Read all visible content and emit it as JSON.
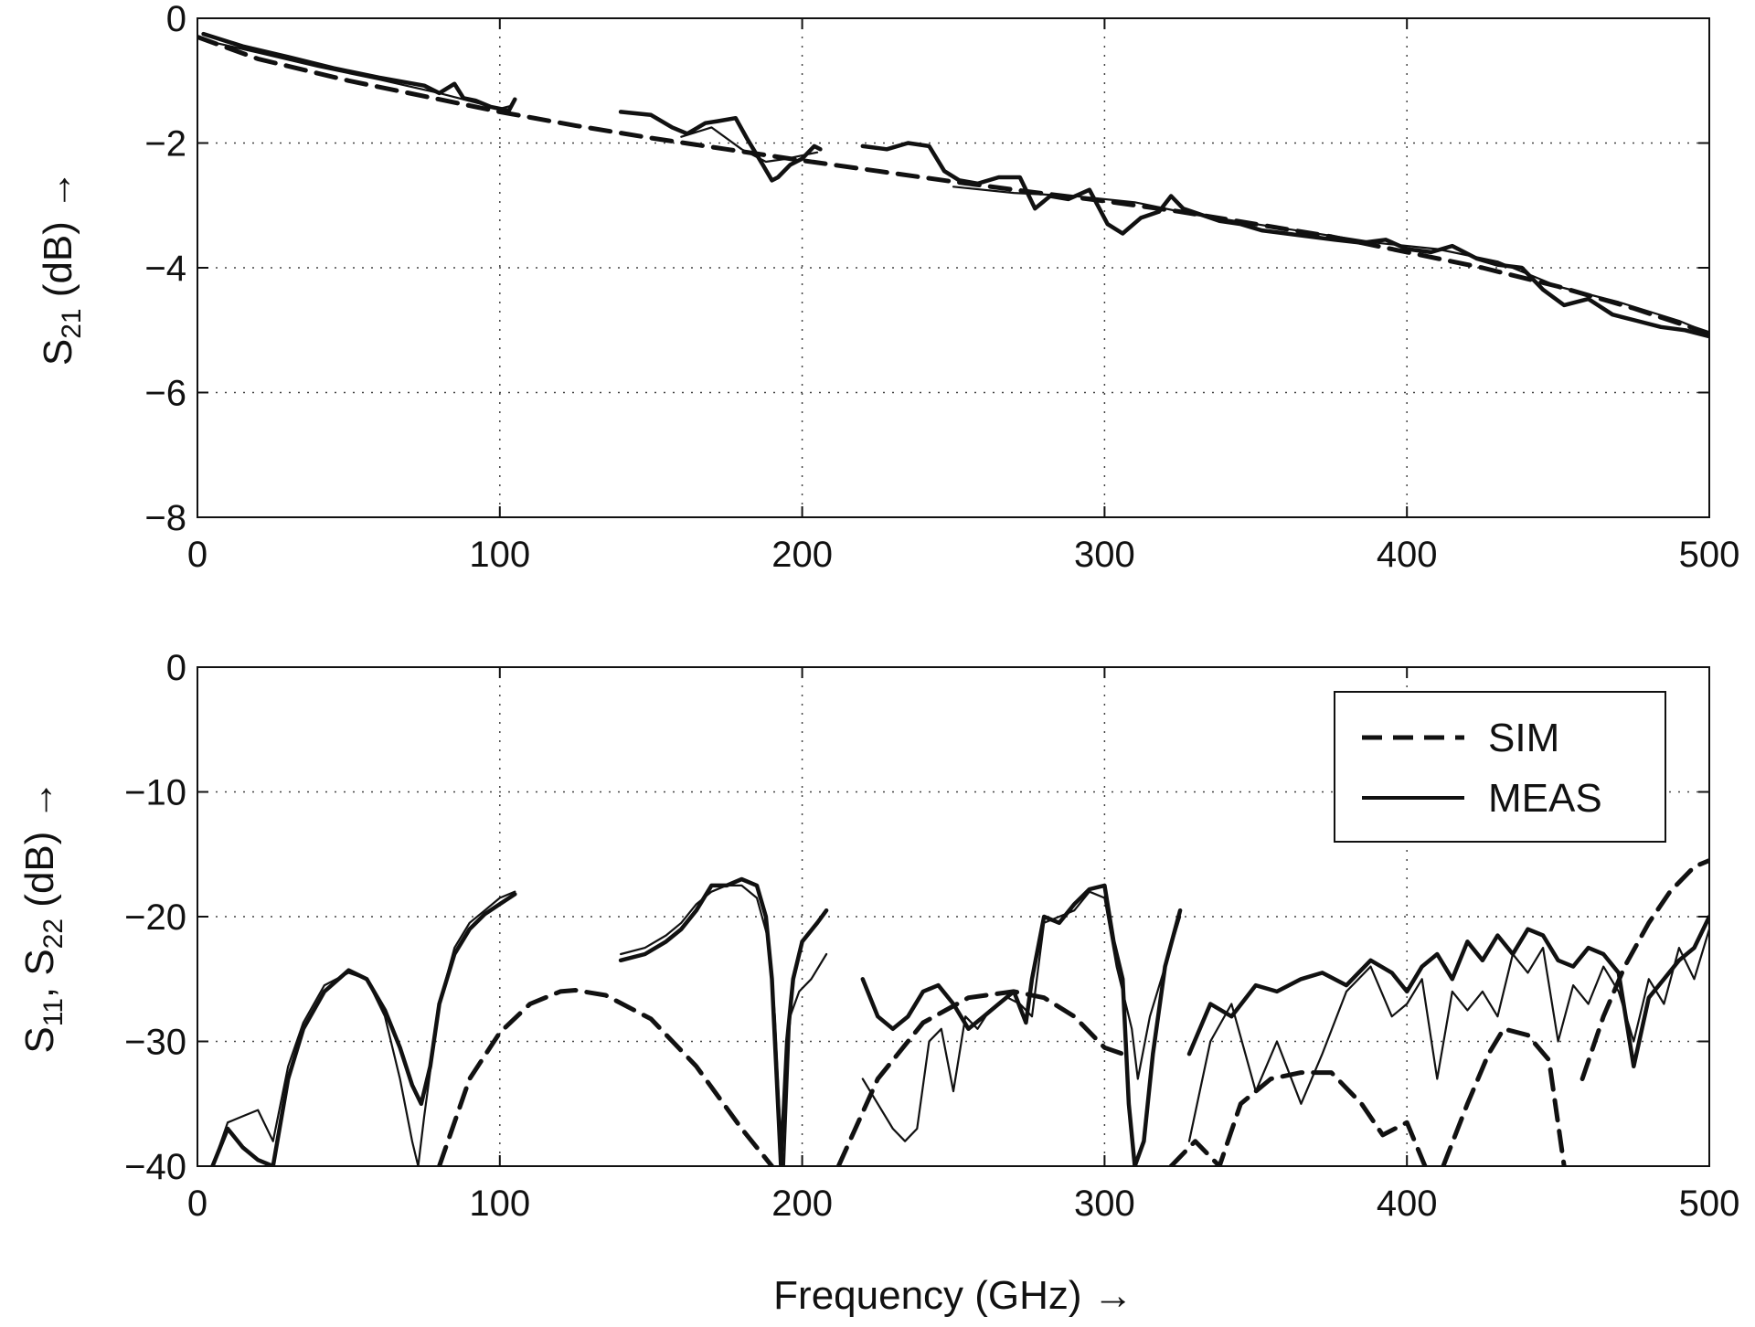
{
  "chart_data": [
    {
      "type": "line",
      "panel": "top",
      "title": "",
      "xlabel": "",
      "ylabel": {
        "main": "S",
        "sub": "21",
        "rest": " (dB) →"
      },
      "xlim": [
        0,
        500
      ],
      "ylim": [
        -8,
        0
      ],
      "xticks": [
        0,
        100,
        200,
        300,
        400,
        500
      ],
      "yticks": [
        0,
        -2,
        -4,
        -6,
        -8
      ],
      "ytick_labels": [
        "0",
        "−2",
        "−4",
        "−6",
        "−8"
      ],
      "grid": "dotted",
      "series": [
        {
          "style": "dashed",
          "x": [
            0,
            20,
            50,
            80,
            100,
            125,
            150,
            175,
            200,
            225,
            250,
            275,
            300,
            325,
            350,
            375,
            400,
            425,
            450,
            475,
            500
          ],
          "y": [
            -0.3,
            -0.65,
            -1.0,
            -1.3,
            -1.5,
            -1.72,
            -1.92,
            -2.1,
            -2.28,
            -2.45,
            -2.62,
            -2.78,
            -2.93,
            -3.1,
            -3.3,
            -3.5,
            -3.75,
            -4.0,
            -4.3,
            -4.65,
            -5.05
          ]
        },
        {
          "style": "solid-thick",
          "segments": [
            {
              "x": [
                2,
                15,
                30,
                45,
                60,
                75,
                80,
                85,
                88,
                92,
                97,
                103,
                105
              ],
              "y": [
                -0.25,
                -0.45,
                -0.62,
                -0.8,
                -0.95,
                -1.08,
                -1.2,
                -1.05,
                -1.28,
                -1.32,
                -1.42,
                -1.48,
                -1.3
              ]
            },
            {
              "x": [
                140,
                150,
                157,
                162,
                168,
                172,
                178,
                182,
                187,
                190,
                192,
                196,
                200,
                204,
                206
              ],
              "y": [
                -1.5,
                -1.55,
                -1.75,
                -1.85,
                -1.68,
                -1.65,
                -1.6,
                -1.95,
                -2.35,
                -2.6,
                -2.55,
                -2.35,
                -2.25,
                -2.05,
                -2.1
              ]
            },
            {
              "x": [
                220,
                228,
                235,
                242,
                247,
                252,
                258,
                265,
                272,
                277,
                282,
                288,
                295,
                301,
                306,
                312,
                318,
                322,
                326,
                332,
                338,
                345,
                352,
                360,
                368,
                376,
                385,
                393,
                400,
                408,
                415,
                423,
                430,
                438,
                445,
                452,
                460,
                468,
                476,
                484,
                492,
                500
              ],
              "y": [
                -2.05,
                -2.1,
                -2.0,
                -2.05,
                -2.45,
                -2.6,
                -2.65,
                -2.55,
                -2.55,
                -3.05,
                -2.85,
                -2.9,
                -2.75,
                -3.3,
                -3.45,
                -3.2,
                -3.1,
                -2.85,
                -3.05,
                -3.15,
                -3.25,
                -3.3,
                -3.4,
                -3.45,
                -3.5,
                -3.55,
                -3.6,
                -3.55,
                -3.7,
                -3.75,
                -3.65,
                -3.85,
                -3.95,
                -4.0,
                -4.35,
                -4.6,
                -4.5,
                -4.75,
                -4.85,
                -4.95,
                -5.0,
                -5.1
              ]
            }
          ]
        },
        {
          "style": "solid-thin",
          "segments": [
            {
              "x": [
                2,
                20,
                40,
                60,
                80,
                100,
                104
              ],
              "y": [
                -0.35,
                -0.55,
                -0.78,
                -0.98,
                -1.2,
                -1.45,
                -1.4
              ]
            },
            {
              "x": [
                160,
                170,
                180,
                188,
                195,
                205
              ],
              "y": [
                -1.9,
                -1.75,
                -2.1,
                -2.3,
                -2.25,
                -2.15
              ]
            },
            {
              "x": [
                250,
                270,
                290,
                310,
                330,
                350,
                370,
                390,
                410,
                430,
                450,
                470,
                490,
                500
              ],
              "y": [
                -2.7,
                -2.8,
                -2.85,
                -2.95,
                -3.15,
                -3.3,
                -3.45,
                -3.6,
                -3.7,
                -3.9,
                -4.3,
                -4.55,
                -4.85,
                -5.05
              ]
            }
          ]
        }
      ]
    },
    {
      "type": "line",
      "panel": "bottom",
      "title": "",
      "xlabel": "Frequency (GHz) →",
      "ylabel": {
        "main1": "S",
        "sub1": "11",
        "mid": ", S",
        "sub2": "22",
        "rest": " (dB) →"
      },
      "xlim": [
        0,
        500
      ],
      "ylim": [
        -40,
        0
      ],
      "xticks": [
        0,
        100,
        200,
        300,
        400,
        500
      ],
      "yticks": [
        0,
        -10,
        -20,
        -30,
        -40
      ],
      "ytick_labels": [
        "0",
        "−10",
        "−20",
        "−30",
        "−40"
      ],
      "grid": "dotted",
      "legend": {
        "placement": "top-right",
        "entries": [
          {
            "label": "SIM",
            "style": "dashed"
          },
          {
            "label": "MEAS",
            "style": "solid"
          }
        ]
      },
      "series": [
        {
          "style": "dashed",
          "segments": [
            {
              "x": [
                80,
                90,
                100,
                110,
                120,
                125,
                135,
                150,
                165,
                180,
                190
              ],
              "y": [
                -40,
                -33,
                -29.3,
                -27,
                -26,
                -25.9,
                -26.3,
                -28.2,
                -32,
                -37,
                -40
              ]
            },
            {
              "x": [
                212,
                225,
                240,
                255,
                270,
                280,
                290,
                300,
                306
              ],
              "y": [
                -40,
                -33,
                -28.5,
                -26.5,
                -26,
                -26.5,
                -28,
                -30.5,
                -31
              ]
            },
            {
              "x": [
                322,
                330,
                338,
                345,
                355,
                365,
                375,
                385,
                392,
                400,
                406
              ],
              "y": [
                -40,
                -38,
                -40,
                -35,
                -33,
                -32.5,
                -32.5,
                -35,
                -37.5,
                -36.5,
                -40
              ]
            },
            {
              "x": [
                412,
                420,
                427,
                432,
                440,
                447,
                452
              ],
              "y": [
                -40,
                -35,
                -31,
                -29,
                -29.5,
                -31.5,
                -40
              ]
            },
            {
              "x": [
                458,
                465,
                472,
                480,
                487,
                495,
                500
              ],
              "y": [
                -33,
                -28,
                -24,
                -20.5,
                -18,
                -16,
                -15.5
              ]
            }
          ]
        },
        {
          "style": "solid-thick",
          "segments": [
            {
              "x": [
                5,
                10,
                15,
                20,
                25,
                30,
                35,
                42,
                50,
                56,
                62,
                67,
                71,
                74,
                77,
                80,
                85,
                90,
                95,
                100,
                105
              ],
              "y": [
                -40,
                -37,
                -38.5,
                -39.5,
                -40,
                -33,
                -29,
                -26,
                -24.3,
                -25,
                -27.5,
                -30.5,
                -33.5,
                -35,
                -32,
                -27,
                -23,
                -21,
                -19.8,
                -19,
                -18.2
              ]
            },
            {
              "x": [
                140,
                148,
                155,
                160,
                165,
                170,
                175,
                180,
                185,
                188,
                190,
                192,
                193,
                195,
                197,
                200,
                205,
                208
              ],
              "y": [
                -23.5,
                -23,
                -22,
                -21,
                -19.5,
                -17.5,
                -17.5,
                -17,
                -17.5,
                -20,
                -25,
                -35,
                -40,
                -30,
                -25,
                -22,
                -20.5,
                -19.5
              ]
            },
            {
              "x": [
                220,
                225,
                230,
                235,
                240,
                245,
                250,
                255,
                260,
                265,
                270,
                274,
                276,
                280,
                285,
                290,
                295,
                300,
                303,
                306,
                308,
                310,
                313,
                316,
                320,
                325
              ],
              "y": [
                -25,
                -28,
                -29,
                -28,
                -26,
                -25.5,
                -27,
                -29,
                -28,
                -27,
                -26,
                -28.5,
                -25,
                -20,
                -20.5,
                -19,
                -17.8,
                -17.5,
                -22,
                -25,
                -35,
                -40,
                -38,
                -31,
                -24,
                -19.5
              ]
            },
            {
              "x": [
                328,
                335,
                342,
                350,
                357,
                365,
                372,
                380,
                388,
                395,
                400,
                405,
                410,
                415,
                420,
                425,
                430,
                435,
                440,
                445,
                450,
                455,
                460,
                465,
                470,
                475,
                480,
                485,
                490,
                495,
                500
              ],
              "y": [
                -31,
                -27,
                -28,
                -25.5,
                -26,
                -25,
                -24.5,
                -25.5,
                -23.5,
                -24.5,
                -26,
                -24,
                -23,
                -25,
                -22,
                -23.5,
                -21.5,
                -23,
                -21,
                -21.5,
                -23.5,
                -24,
                -22.5,
                -23,
                -24.5,
                -32,
                -26.5,
                -25,
                -23.5,
                -22.5,
                -20
              ]
            }
          ]
        },
        {
          "style": "solid-thin",
          "segments": [
            {
              "x": [
                5,
                10,
                15,
                20,
                25,
                30,
                35,
                42,
                50,
                56,
                62,
                67,
                71,
                73,
                75,
                80,
                85,
                90,
                95,
                100,
                105
              ],
              "y": [
                -40,
                -36.5,
                -36,
                -35.5,
                -38,
                -32,
                -28.5,
                -25.5,
                -24.5,
                -25,
                -28,
                -33,
                -38,
                -40,
                -36,
                -27,
                -22.5,
                -20.5,
                -19.5,
                -18.5,
                -18
              ]
            },
            {
              "x": [
                140,
                148,
                155,
                160,
                165,
                170,
                175,
                180,
                185,
                189,
                191,
                193,
                194,
                196,
                199,
                203,
                208
              ],
              "y": [
                -23,
                -22.5,
                -21.5,
                -20.5,
                -19,
                -18,
                -17.5,
                -17.5,
                -18.5,
                -22,
                -28,
                -38,
                -40,
                -28,
                -26,
                -25,
                -23
              ]
            },
            {
              "x": [
                220,
                225,
                230,
                234,
                238,
                242,
                246,
                250,
                254,
                258,
                262,
                268,
                272,
                276,
                280,
                285,
                290,
                295,
                300,
                304,
                307,
                309,
                311,
                315,
                320,
                325
              ],
              "y": [
                -33,
                -35,
                -37,
                -38,
                -37,
                -30,
                -29,
                -34,
                -28,
                -29,
                -27.5,
                -26.5,
                -27,
                -28,
                -20.5,
                -20,
                -19.5,
                -18,
                -18.5,
                -24,
                -27,
                -29,
                -33,
                -28,
                -24,
                -20
              ]
            },
            {
              "x": [
                328,
                335,
                342,
                350,
                357,
                365,
                372,
                380,
                388,
                395,
                400,
                405,
                410,
                415,
                420,
                425,
                430,
                435,
                440,
                445,
                450,
                455,
                460,
                465,
                470,
                475,
                480,
                485,
                490,
                495,
                500
              ],
              "y": [
                -38,
                -30,
                -27,
                -34,
                -30,
                -35,
                -31,
                -26,
                -24,
                -28,
                -27,
                -25,
                -33,
                -26,
                -27.5,
                -26,
                -28,
                -23,
                -24.5,
                -22.5,
                -30,
                -25.5,
                -27,
                -24,
                -26,
                -30,
                -25,
                -27,
                -22.5,
                -25,
                -21
              ]
            }
          ]
        }
      ]
    }
  ]
}
